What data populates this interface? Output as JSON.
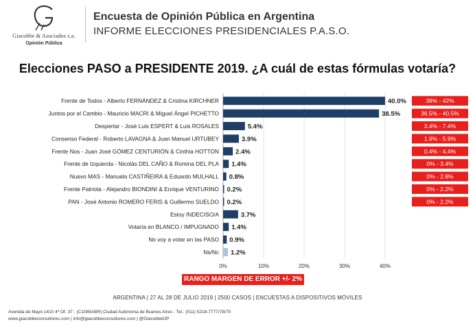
{
  "logo": {
    "name": "Giacobbe & Asociados s.a.",
    "tagline": "Opinión Pública"
  },
  "header": {
    "title": "Encuesta de Opinión Pública en Argentina",
    "subtitle": "INFORME ELECCIONES PRESIDENCIALES P.A.S.O."
  },
  "chart_data": {
    "type": "bar",
    "orientation": "horizontal",
    "title": "Elecciones PASO a PRESIDENTE 2019. ¿A cuál de estas fórmulas votaría?",
    "categories": [
      "Frente de Todos - Alberto FERNÁNDEZ & Cristina KIRCHNER",
      "Juntos por el Cambio - Mauricio MACRI & Miguel Ángel PICHETTO",
      "Despertar - José Luis ESPERT & Luis ROSALES",
      "Consenso Federal - Roberto LAVAGNA & Juan Manuel URTUBEY",
      "Frente Nos - Juan José GÓMEZ CENTURIÓN & Cinthia HOTTON",
      "Frente de Izquierda - Nicolás DEL CAÑO & Romina DEL PLA",
      "Nuevo MAS - Manuela CASTIÑEIRA & Eduardo MULHALL",
      "Frente Patriota - Alejandro BIONDINI & Enrique VENTURINO",
      "PAN - José Antonio ROMERO FERIS & Guillermo SUELDO",
      "Estoy INDECISO/A",
      "Votaría en BLANCO / IMPUGNADO",
      "No voy a votar en las PASO",
      "Ns/Nc"
    ],
    "values": [
      40.0,
      38.5,
      5.4,
      3.9,
      2.4,
      1.4,
      0.8,
      0.2,
      0.2,
      3.7,
      1.4,
      0.9,
      1.2
    ],
    "value_labels": [
      "40.0%",
      "38.5%",
      "5.4%",
      "3.9%",
      "2.4%",
      "1.4%",
      "0.8%",
      "0.2%",
      "0.2%",
      "3.7%",
      "1.4%",
      "0.9%",
      "1.2%"
    ],
    "error_ranges": [
      "38% - 42%",
      "36.5% - 40.5%",
      "3.4% - 7.4%",
      "1.9% - 5.9%",
      "0.4% - 4.4%",
      "0% - 3.4%",
      "0% - 2.8%",
      "0% - 2.2%",
      "0% - 2.2%"
    ],
    "xlim": [
      0,
      40
    ],
    "xticks": [
      "0%",
      "10%",
      "20%",
      "30%",
      "40%"
    ],
    "grid": true,
    "colors": {
      "bar": "#1f3f66",
      "bar_last": "#a9c4e4",
      "error_box": "#e8201c"
    }
  },
  "margin_note": "RANGO MARGEN DE ERROR +/- 2%",
  "footer": {
    "info": "ARGENTINA | 27 AL 28 DE JULIO 2019 | 2500 CASOS | ENCUESTAS A DISPOSITIVOS MÓVILES",
    "address": "Avenida de Mayo 1410 4º Of. 37 - (C1085ABR) Ciudad Autónoma de Buenos Aires - Tel.: (011) 5218-7777/78/79",
    "contact": "www.giacobbeconsultores.com | info@giacobbeconsultores.com | @GiacobbeOP"
  }
}
